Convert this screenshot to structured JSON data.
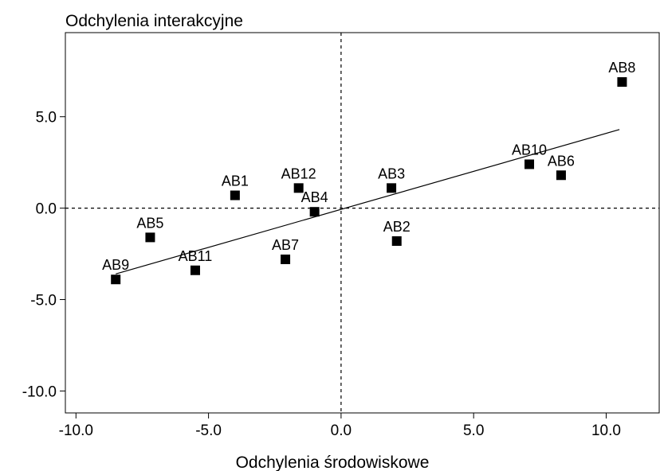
{
  "chart_data": {
    "type": "scatter",
    "title": "Odchylenia interakcyjne",
    "xlabel": "Odchylenia środowiskowe",
    "ylabel": "",
    "xlim": [
      -10.4,
      12.0
    ],
    "ylim": [
      -11.2,
      9.6
    ],
    "xticks": [
      -10.0,
      -5.0,
      0.0,
      5.0,
      10.0
    ],
    "xtick_labels": [
      "-10.0",
      "-5.0",
      "0.0",
      "5.0",
      "10.0"
    ],
    "yticks": [
      5.0,
      0.0,
      -5.0,
      -10.0
    ],
    "ytick_labels": [
      "5.0",
      "0.0",
      "-5.0",
      "-10.0"
    ],
    "grid": false,
    "reference_lines": {
      "x": 0,
      "y": 0,
      "style": "dashed"
    },
    "points": [
      {
        "label": "AB1",
        "x": -4.0,
        "y": 0.7
      },
      {
        "label": "AB2",
        "x": 2.1,
        "y": -1.8
      },
      {
        "label": "AB3",
        "x": 1.9,
        "y": 1.1
      },
      {
        "label": "AB4",
        "x": -1.0,
        "y": -0.2
      },
      {
        "label": "AB5",
        "x": -7.2,
        "y": -1.6
      },
      {
        "label": "AB6",
        "x": 8.3,
        "y": 1.8
      },
      {
        "label": "AB7",
        "x": -2.1,
        "y": -2.8
      },
      {
        "label": "AB8",
        "x": 10.6,
        "y": 6.9
      },
      {
        "label": "AB9",
        "x": -8.5,
        "y": -3.9
      },
      {
        "label": "AB10",
        "x": 7.1,
        "y": 2.4
      },
      {
        "label": "AB11",
        "x": -5.5,
        "y": -3.4
      },
      {
        "label": "AB12",
        "x": -1.6,
        "y": 1.1
      }
    ],
    "fit_line": {
      "x": [
        -8.5,
        10.5
      ],
      "y": [
        -3.6,
        4.3
      ]
    },
    "colors": {
      "marker": "#000000",
      "line": "#000000",
      "background": "#ffffff"
    }
  }
}
